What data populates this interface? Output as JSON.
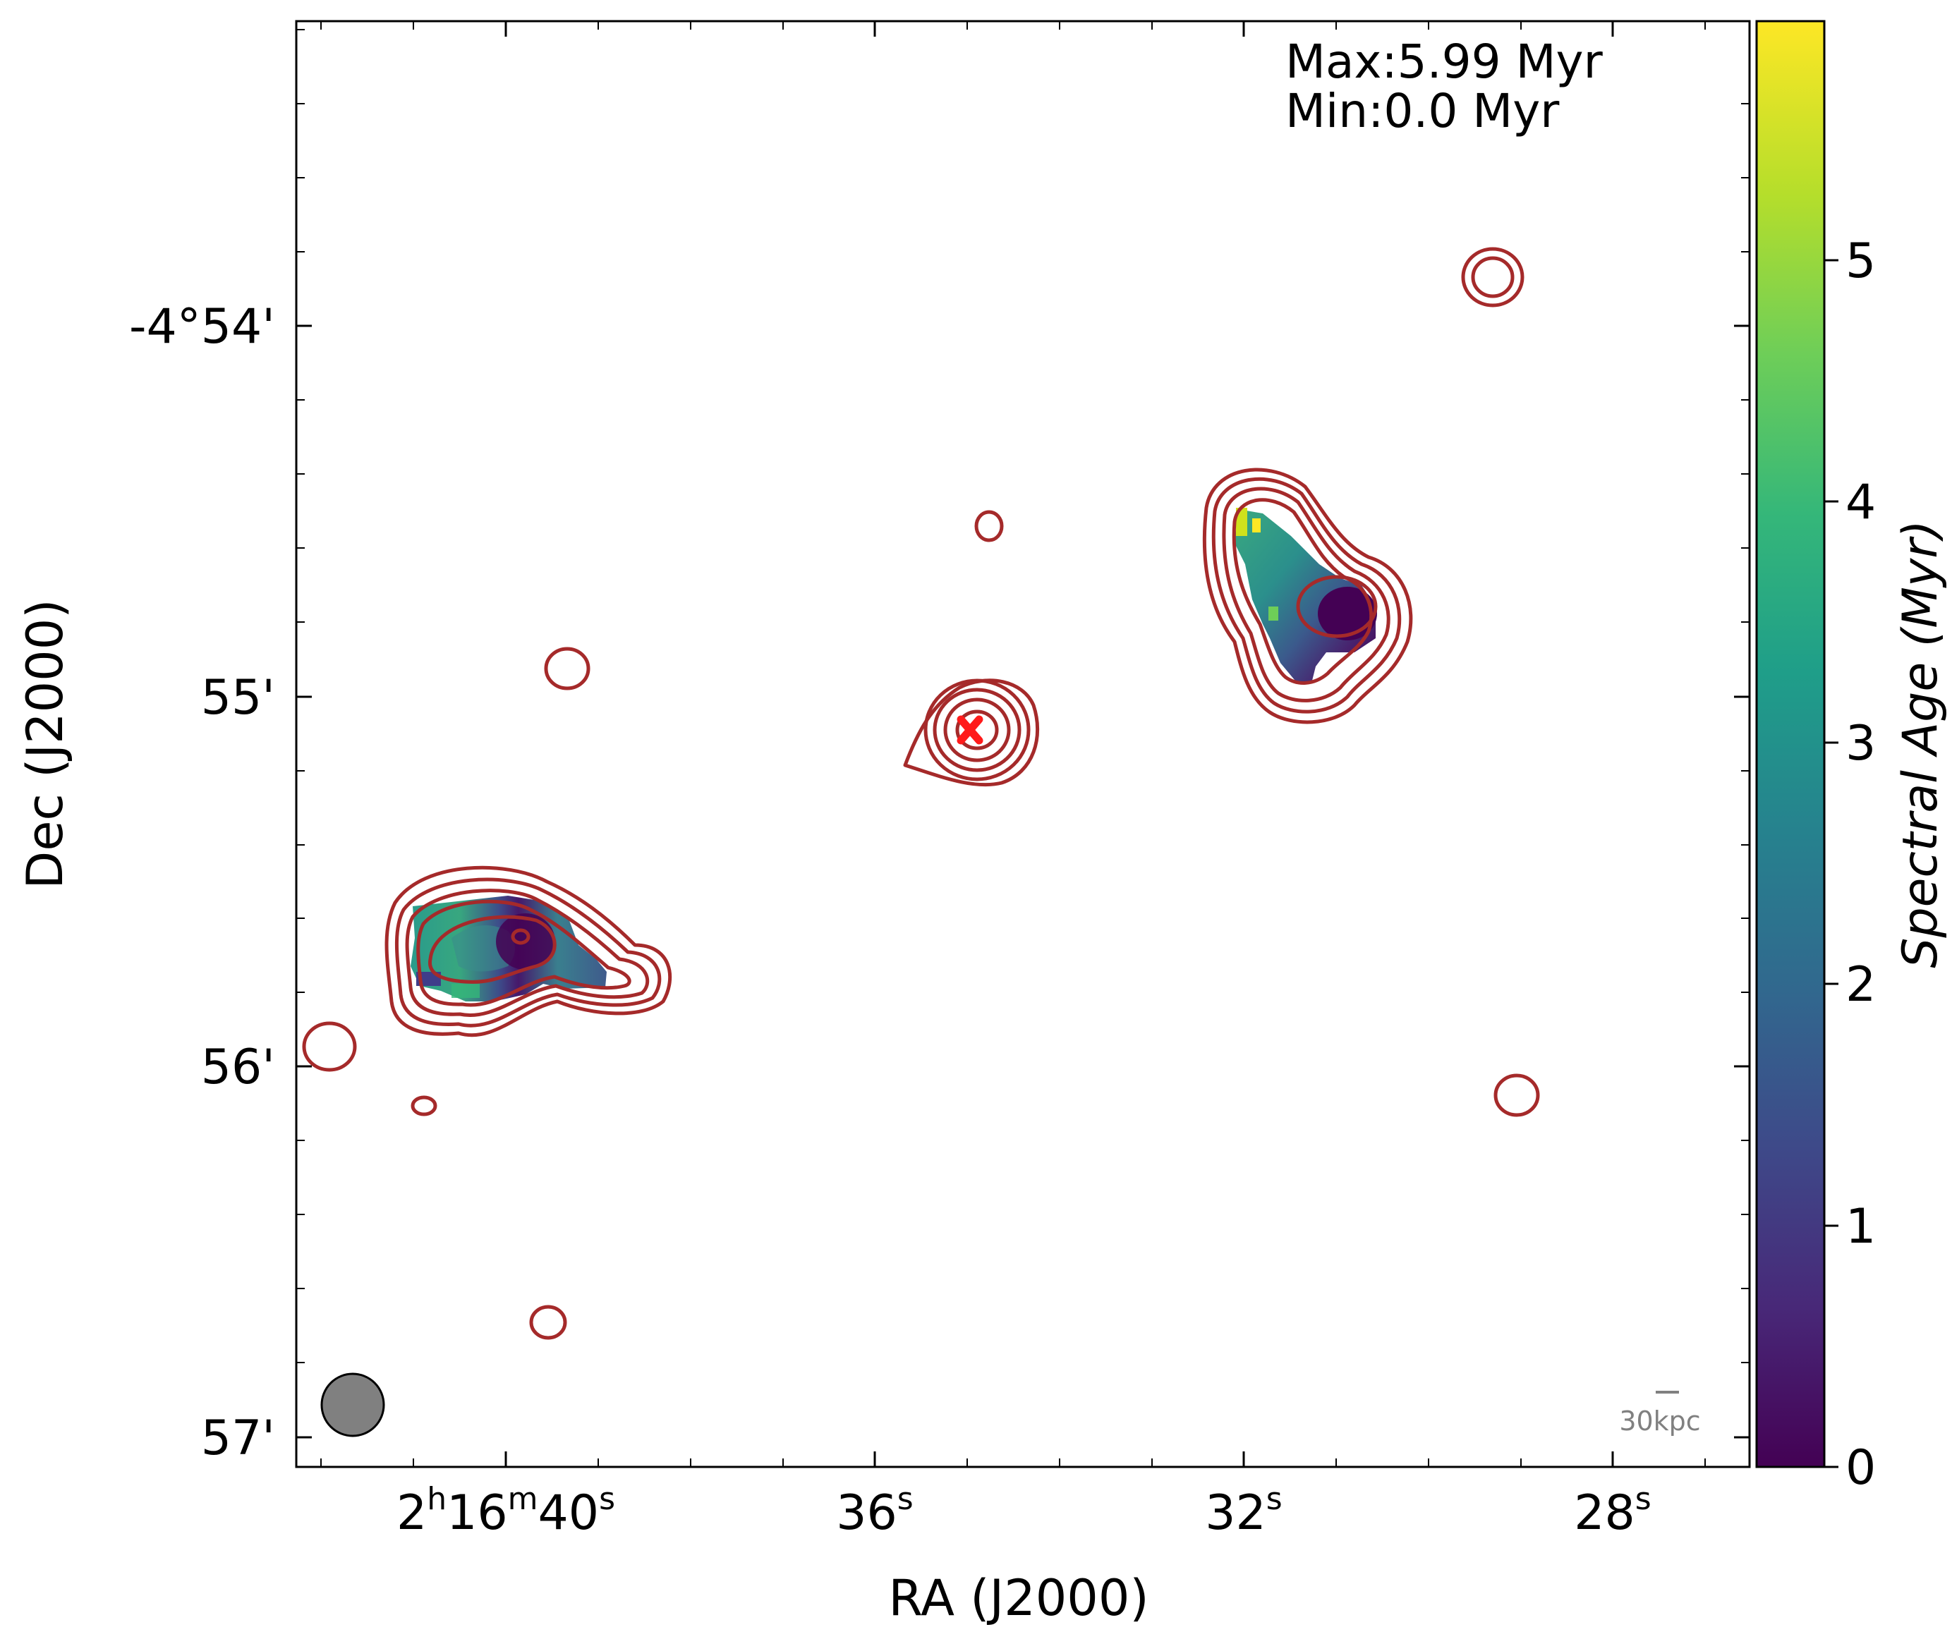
{
  "chart_data": {
    "type": "heatmap",
    "title": "",
    "xlabel": "RA (J2000)",
    "ylabel": "Dec (J2000)",
    "x_ticks": [
      {
        "h": "2",
        "m": "16",
        "s": "40",
        "label": "2h16m40s"
      },
      {
        "s": "36",
        "label": "36s"
      },
      {
        "s": "32",
        "label": "32s"
      },
      {
        "s": "28",
        "label": "28s"
      }
    ],
    "y_ticks": [
      "-4°54'",
      "55'",
      "56'",
      "57'"
    ],
    "annotation": {
      "max": "Max:5.99 Myr",
      "min": "Min:0.0 Myr"
    },
    "scale_bar": "30kpc",
    "colorbar": {
      "label": "Spectral Age (Myr)",
      "range": [
        0,
        5.99
      ],
      "ticks": [
        "0",
        "1",
        "2",
        "3",
        "4",
        "5"
      ],
      "colormap": "viridis",
      "stops": [
        "#440154",
        "#482878",
        "#3e4989",
        "#31688e",
        "#26828e",
        "#1f9e89",
        "#35b779",
        "#6ece58",
        "#b5de2b",
        "#fde725"
      ]
    },
    "core_marker": "red-x",
    "colors": {
      "contour": "#a52a2a",
      "core_marker": "#ff1a1a",
      "beam": "#808080"
    }
  }
}
